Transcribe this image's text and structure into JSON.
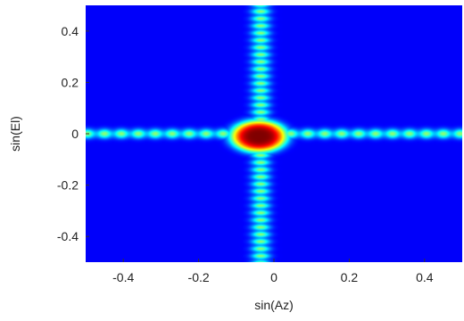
{
  "chart_data": {
    "type": "heatmap",
    "title": "",
    "xlabel": "sin(Az)",
    "ylabel": "sin(El)",
    "xlim": [
      -0.5,
      0.5
    ],
    "ylim": [
      -0.5,
      0.5
    ],
    "x_ticks": [
      -0.4,
      -0.2,
      0,
      0.2,
      0.4
    ],
    "y_ticks": [
      -0.4,
      -0.2,
      0,
      0.2,
      0.4
    ],
    "x_tick_labels": [
      "-0.4",
      "-0.2",
      "0",
      "0.2",
      "0.4"
    ],
    "y_tick_labels": [
      "-0.4",
      "-0.2",
      "0",
      "0.2",
      "0.4"
    ],
    "colormap": "jet",
    "background_color": "#0000A0",
    "grid": false,
    "legend": "none",
    "features": {
      "main_lobe": {
        "center": [
          -0.04,
          -0.01
        ],
        "radius_x": 0.12,
        "radius_y": 0.1,
        "peak": 1.0
      },
      "horizontal_sidelobes": {
        "y": 0.0,
        "x_from": -0.5,
        "x_to": 0.5,
        "period": 0.045,
        "level": 0.45
      },
      "vertical_sidelobes": {
        "x": -0.035,
        "y_from": -0.5,
        "y_to": 0.5,
        "period": 0.028,
        "level": 0.45
      }
    }
  }
}
